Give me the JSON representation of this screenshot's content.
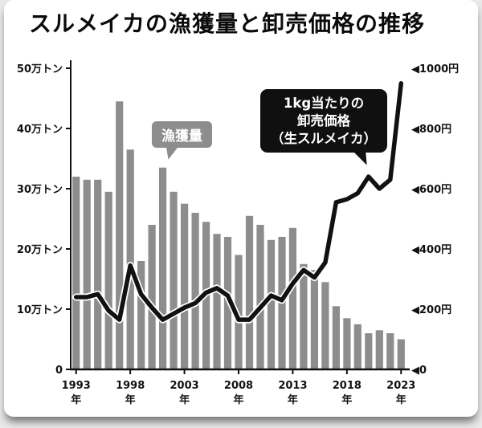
{
  "title": "スルメイカの漁獲量と卸売価格の推移",
  "chart_data": {
    "type": "bar+line",
    "title": "スルメイカの漁獲量と卸売価格の推移",
    "years": [
      1993,
      1994,
      1995,
      1996,
      1997,
      1998,
      1999,
      2000,
      2001,
      2002,
      2003,
      2004,
      2005,
      2006,
      2007,
      2008,
      2009,
      2010,
      2011,
      2012,
      2013,
      2014,
      2015,
      2016,
      2017,
      2018,
      2019,
      2020,
      2021,
      2022,
      2023
    ],
    "series": [
      {
        "name": "漁獲量",
        "type": "bar",
        "axis": "left",
        "unit": "万トン",
        "color": "#8d8d8d",
        "values": [
          32,
          31.5,
          31.5,
          29.5,
          44.5,
          36.5,
          18,
          24,
          33.5,
          29.5,
          27.5,
          26,
          24.5,
          22.5,
          22,
          19,
          25.5,
          24,
          21.5,
          22,
          23.5,
          17.5,
          16.5,
          14.5,
          10.5,
          8.5,
          7.5,
          6,
          6.5,
          6,
          5
        ]
      },
      {
        "name": "1kg当たりの卸売価格（生スルメイカ）",
        "type": "line",
        "axis": "right",
        "unit": "円",
        "color": "#111111",
        "values": [
          240,
          240,
          250,
          195,
          165,
          345,
          250,
          205,
          165,
          185,
          205,
          220,
          255,
          270,
          245,
          165,
          165,
          205,
          245,
          230,
          285,
          330,
          305,
          355,
          555,
          565,
          585,
          640,
          600,
          630,
          950
        ]
      }
    ],
    "left_axis": {
      "min": 0,
      "max": 50,
      "ticks": [
        "0",
        "10万トン",
        "20万トン",
        "30万トン",
        "40万トン",
        "50万トン"
      ]
    },
    "right_axis": {
      "min": 0,
      "max": 1000,
      "ticks": [
        "◀0",
        "◀200円",
        "◀400円",
        "◀600円",
        "◀800円",
        "◀1000円"
      ]
    },
    "x_ticks": [
      "1993年",
      "1998年",
      "2003年",
      "2008年",
      "2013年",
      "2018年",
      "2023年"
    ],
    "grid": false,
    "annotations": {
      "catch_badge": "漁獲量",
      "price_badge_lines": [
        "1kg当たりの",
        "卸売価格",
        "（生スルメイカ）"
      ]
    }
  }
}
